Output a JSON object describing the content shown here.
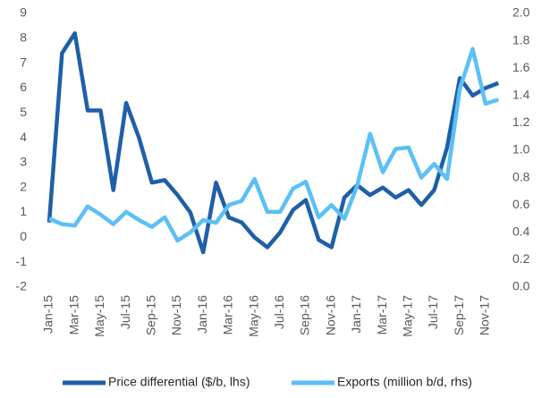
{
  "chart_data": {
    "type": "line",
    "categories": [
      "Jan-15",
      null,
      "Mar-15",
      null,
      "May-15",
      null,
      "Jul-15",
      null,
      "Sep-15",
      null,
      "Nov-15",
      null,
      "Jan-16",
      null,
      "Mar-16",
      null,
      "May-16",
      null,
      "Jul-16",
      null,
      "Sep-16",
      null,
      "Nov-16",
      null,
      "Jan-17",
      null,
      "Mar-17",
      null,
      "May-17",
      null,
      "Jul-17",
      null,
      "Sep-17",
      null,
      "Nov-17",
      null
    ],
    "series": [
      {
        "name": "Price differential ($/b, lhs)",
        "color": "#1f5fa8",
        "axis": "y",
        "values": [
          0.6,
          7.4,
          8.2,
          5.1,
          5.1,
          1.9,
          5.4,
          4.0,
          2.2,
          2.3,
          1.7,
          1.0,
          -0.6,
          2.2,
          0.8,
          0.6,
          0.0,
          -0.4,
          0.2,
          1.1,
          1.5,
          -0.1,
          -0.4,
          1.6,
          2.1,
          1.7,
          2.0,
          1.6,
          1.9,
          1.3,
          1.9,
          3.6,
          6.4,
          5.7,
          6.0,
          6.2
        ]
      },
      {
        "name": "Exports (million b/d, rhs)",
        "color": "#5bc0f5",
        "axis": "y2",
        "values": [
          0.5,
          0.46,
          0.45,
          0.59,
          0.53,
          0.46,
          0.55,
          0.49,
          0.44,
          0.51,
          0.34,
          0.4,
          0.49,
          0.47,
          0.6,
          0.63,
          0.79,
          0.55,
          0.55,
          0.72,
          0.77,
          0.51,
          0.6,
          0.5,
          0.74,
          1.12,
          0.84,
          1.01,
          1.02,
          0.8,
          0.9,
          0.79,
          1.45,
          1.74,
          1.34,
          1.37
        ]
      }
    ],
    "ylim": [
      -2,
      9
    ],
    "yticks": [
      -2,
      -1,
      0,
      1,
      2,
      3,
      4,
      5,
      6,
      7,
      8,
      9
    ],
    "y2lim": [
      0,
      2
    ],
    "y2ticks": [
      {
        "value": 0,
        "label": "0.0"
      },
      0.2,
      0.4,
      0.6,
      0.8,
      {
        "value": 1,
        "label": "1.0"
      },
      1.2,
      1.4,
      1.6,
      1.8,
      {
        "value": 2,
        "label": "2.0"
      }
    ],
    "grid": false,
    "legend": "bottom"
  }
}
